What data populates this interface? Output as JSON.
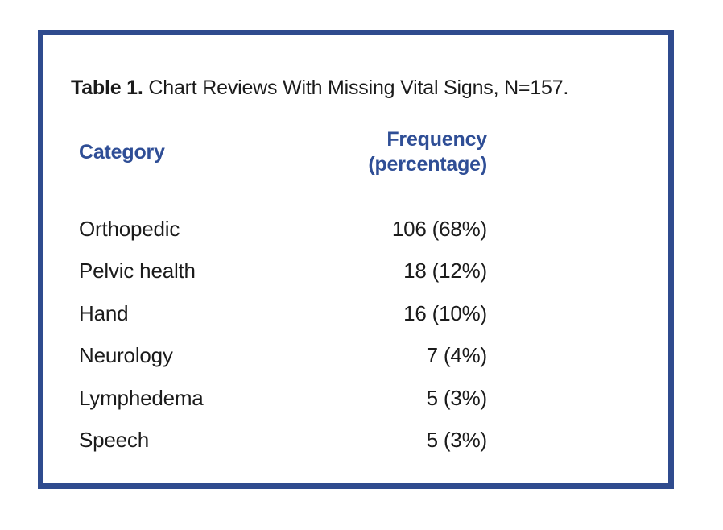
{
  "table": {
    "title": {
      "prefix": "Table 1.",
      "rest": " Chart Reviews With Missing Vital Signs, N=157."
    },
    "headers": {
      "category": "Category",
      "frequency": "Frequency",
      "frequency_sub": "(percentage)"
    },
    "rows": [
      {
        "category": "Orthopedic",
        "frequency": "106 (68%)"
      },
      {
        "category": "Pelvic health",
        "frequency": "18 (12%)"
      },
      {
        "category": "Hand",
        "frequency": "16 (10%)"
      },
      {
        "category": "Neurology",
        "frequency": "7 (4%)"
      },
      {
        "category": "Lymphedema",
        "frequency": "5 (3%)"
      },
      {
        "category": "Speech",
        "frequency": "5 (3%)"
      }
    ]
  },
  "colors": {
    "border_blue": "#2f4b8e",
    "header_blue": "#2f4e96",
    "text_black": "#1b1b1b",
    "background": "#ffffff"
  },
  "chart_data": {
    "type": "table",
    "title": "Table 1. Chart Reviews With Missing Vital Signs, N=157.",
    "columns": [
      "Category",
      "Frequency (percentage)"
    ],
    "rows": [
      [
        "Orthopedic",
        "106 (68%)"
      ],
      [
        "Pelvic health",
        "18 (12%)"
      ],
      [
        "Hand",
        "16 (10%)"
      ],
      [
        "Neurology",
        "7 (4%)"
      ],
      [
        "Lymphedema",
        "5 (3%)"
      ],
      [
        "Speech",
        "5 (3%)"
      ]
    ],
    "values": [
      106,
      18,
      16,
      7,
      5,
      5
    ],
    "percentages": [
      68,
      12,
      10,
      4,
      3,
      3
    ],
    "n": 157
  }
}
